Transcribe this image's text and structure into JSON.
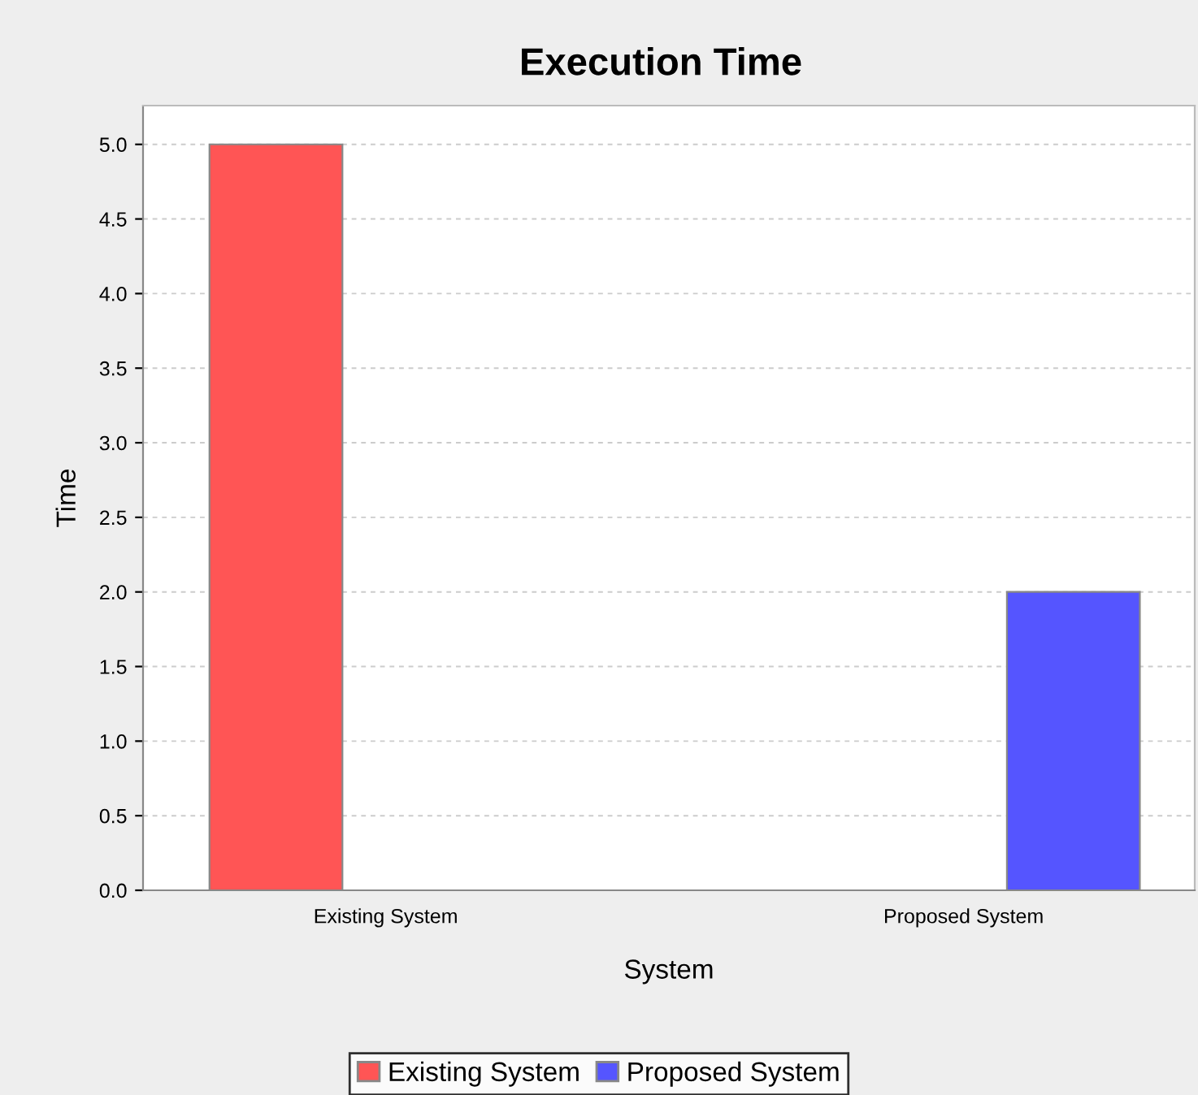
{
  "chart_data": {
    "type": "bar",
    "title": "Execution Time",
    "xlabel": "System",
    "ylabel": "Time",
    "categories": [
      "Existing System",
      "Proposed System"
    ],
    "series": [
      {
        "name": "Existing System",
        "color": "#ff5555",
        "values": [
          5.0,
          null
        ]
      },
      {
        "name": "Proposed System",
        "color": "#5555ff",
        "values": [
          null,
          2.0
        ]
      }
    ],
    "ylim": [
      0,
      5.26
    ],
    "yticks": [
      {
        "value": 0,
        "label": "0.0"
      },
      0.5,
      {
        "value": 1,
        "label": "1.0"
      },
      1.5,
      {
        "value": 2,
        "label": "2.0"
      },
      2.5,
      {
        "value": 3,
        "label": "3.0"
      },
      3.5,
      {
        "value": 4,
        "label": "4.0"
      },
      4.5,
      {
        "value": 5,
        "label": "5.0"
      }
    ],
    "grid": "y",
    "legend": "bottom"
  }
}
